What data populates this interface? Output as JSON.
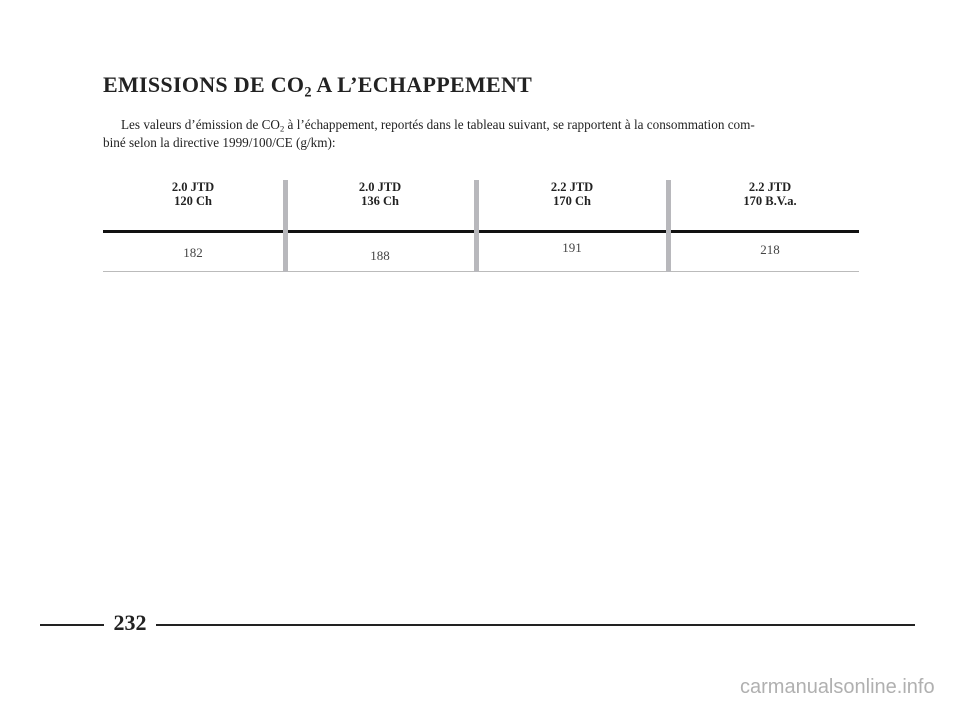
{
  "title": {
    "before": "EMISSIONS DE CO",
    "sub": "2",
    "after": " A L’ECHAPPEMENT"
  },
  "intro": {
    "before": "Les valeurs d’émission de CO",
    "sub": "2",
    "after": " à l’échappement, reportés dans le tableau suivant, se rapportent à la consommation com-",
    "line2": "biné selon la directive 1999/100/CE (g/km):"
  },
  "table": {
    "headers": [
      [
        "2.0 JTD",
        "120 Ch"
      ],
      [
        "2.0 JTD",
        "136 Ch"
      ],
      [
        "2.2 JTD",
        "170 Ch"
      ],
      [
        "2.2 JTD",
        "170 B.V.a."
      ]
    ],
    "values": [
      182,
      188,
      191,
      218
    ]
  },
  "page_number": "232",
  "watermark": "carmanualsonline.info"
}
